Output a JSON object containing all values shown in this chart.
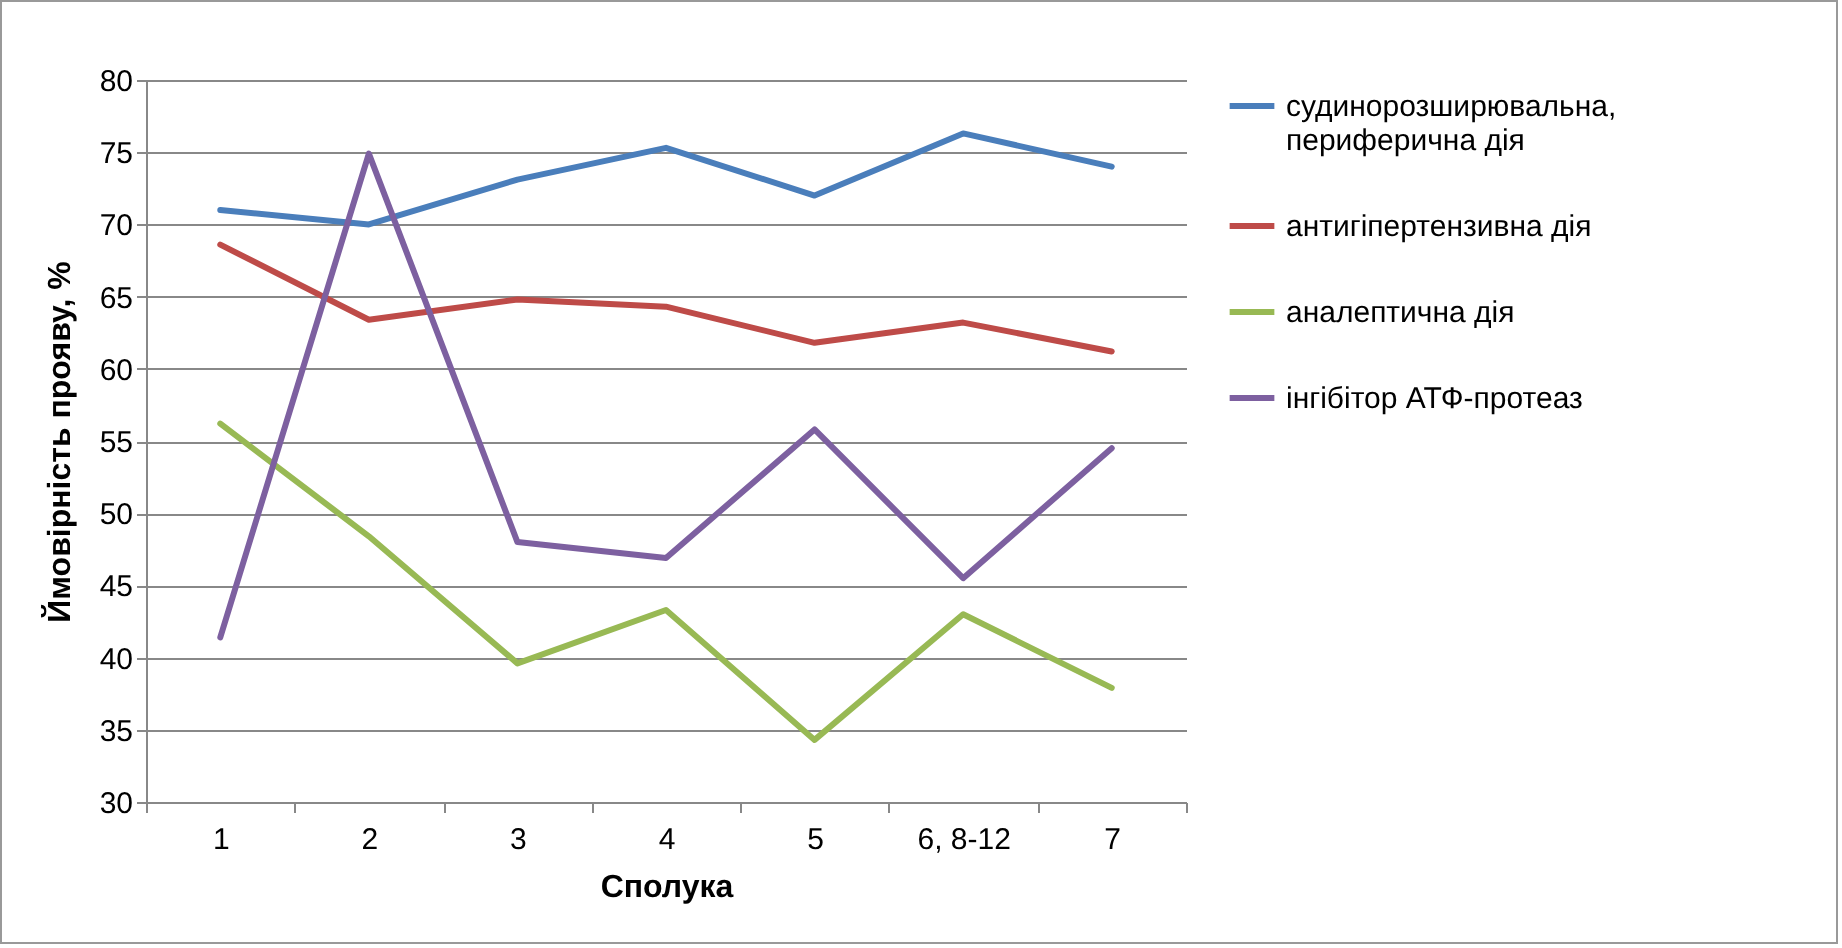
{
  "chart_data": {
    "type": "line",
    "xlabel": "Сполука",
    "ylabel": "Ймовірність прояву, %",
    "categories": [
      "1",
      "2",
      "3",
      "4",
      "5",
      "6, 8-12",
      "7"
    ],
    "series": [
      {
        "name": "судинорозширювальна, периферична дія",
        "color": "#4a7ebb",
        "values": [
          71.0,
          70.0,
          73.1,
          75.3,
          72.0,
          76.3,
          74.0
        ]
      },
      {
        "name": "антигіпертензивна дія",
        "color": "#be4b48",
        "values": [
          68.6,
          63.4,
          64.8,
          64.3,
          61.8,
          63.2,
          61.2
        ]
      },
      {
        "name": "аналептична дія",
        "color": "#98b954",
        "values": [
          56.2,
          48.4,
          39.6,
          43.3,
          34.3,
          43.0,
          37.9
        ]
      },
      {
        "name": "інгібітор АТФ-протеаз",
        "color": "#7d60a0",
        "values": [
          41.4,
          74.9,
          48.0,
          46.9,
          55.8,
          45.5,
          54.5
        ]
      }
    ],
    "ylim": [
      30,
      80
    ],
    "yticks": [
      30,
      35,
      40,
      45,
      50,
      55,
      60,
      65,
      70,
      75,
      80
    ],
    "grid": "y",
    "legend": "right",
    "marker": "none",
    "line_style": "solid"
  }
}
